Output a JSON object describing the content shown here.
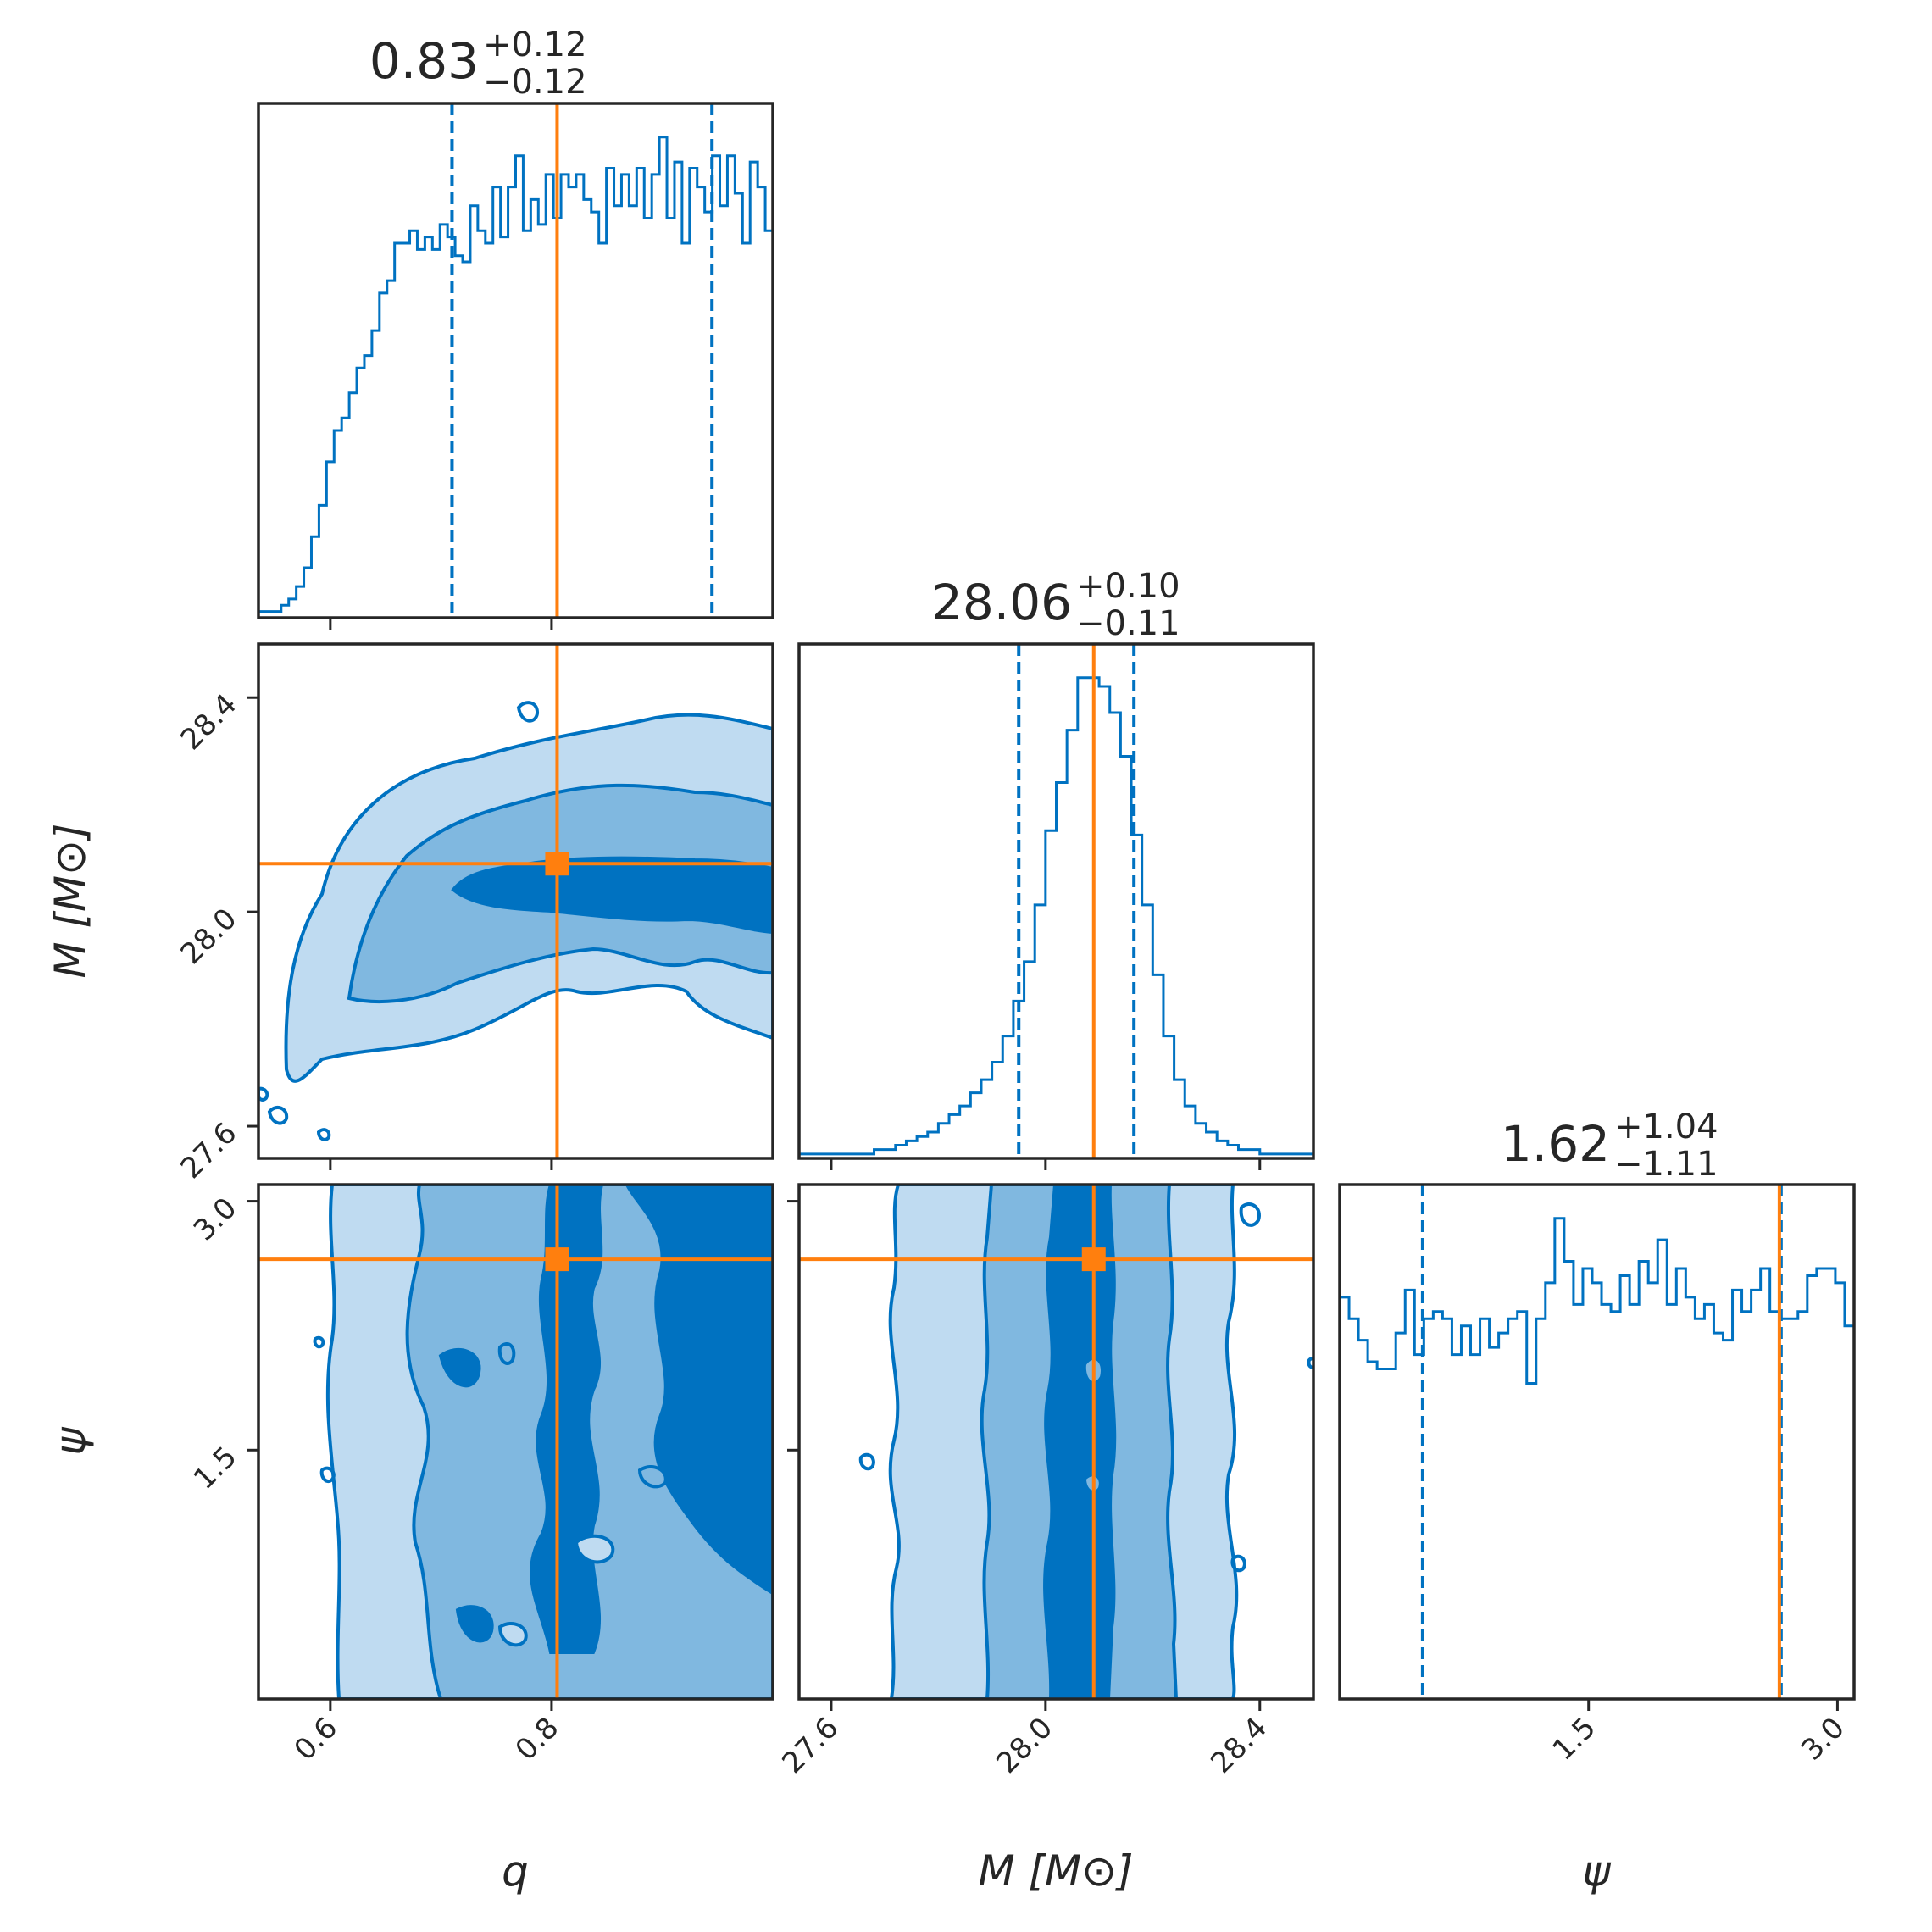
{
  "colors": {
    "primary": "#0072C1",
    "truth": "#FF7F0E",
    "contour_fills": [
      "#BFDBF1",
      "#80B8E0",
      "#0072C1"
    ],
    "axes": "#262626"
  },
  "chart_data": {
    "type": "corner",
    "parameters": [
      {
        "key": "q",
        "label": "q",
        "range": [
          0.535,
          1.0
        ],
        "ticks": [
          0.6,
          0.8
        ],
        "tick_labels": [
          "0.6",
          "0.8"
        ],
        "truth": 0.805,
        "title": {
          "median": "0.83",
          "plus": "+0.12",
          "minus": "−0.12"
        },
        "quantiles": [
          0.71,
          0.945
        ]
      },
      {
        "key": "M",
        "label": "M [M⊙]",
        "range": [
          27.54,
          28.5
        ],
        "ticks": [
          27.6,
          28.0,
          28.4
        ],
        "tick_labels": [
          "27.6",
          "28.0",
          "28.4"
        ],
        "truth": 28.09,
        "title": {
          "median": "28.06",
          "plus": "+0.10",
          "minus": "−0.11"
        },
        "quantiles": [
          27.95,
          28.165
        ]
      },
      {
        "key": "psi",
        "label": "ψ",
        "range": [
          0.0,
          3.1
        ],
        "ticks": [
          1.5,
          3.0
        ],
        "tick_labels": [
          "1.5",
          "3.0"
        ],
        "truth": 2.65,
        "title": {
          "median": "1.62",
          "plus": "+1.04",
          "minus": "−1.11"
        },
        "quantiles": [
          0.5,
          2.66
        ]
      }
    ],
    "histograms": {
      "q": {
        "x_start": 0.535,
        "x_end": 1.0,
        "counts": [
          1,
          1,
          1,
          2,
          3,
          5,
          8,
          13,
          18,
          25,
          30,
          32,
          36,
          40,
          42,
          46,
          52,
          54,
          60,
          60,
          62,
          59,
          61,
          59,
          63,
          61,
          58,
          57,
          66,
          62,
          60,
          69,
          61,
          69,
          74,
          62,
          67,
          63,
          71,
          64,
          71,
          69,
          71,
          67,
          65,
          60,
          72,
          66,
          71,
          66,
          72,
          64,
          71,
          77,
          64,
          73,
          60,
          72,
          69,
          65,
          74,
          66,
          74,
          68,
          60,
          73,
          69,
          62
        ]
      },
      "M": {
        "x_start": 27.54,
        "x_end": 28.5,
        "counts": [
          1,
          1,
          1,
          1,
          1,
          1,
          1,
          2,
          2,
          3,
          4,
          5,
          6,
          8,
          10,
          12,
          15,
          18,
          22,
          28,
          36,
          45,
          58,
          75,
          86,
          98,
          110,
          110,
          108,
          102,
          92,
          74,
          58,
          42,
          28,
          18,
          12,
          8,
          6,
          4,
          3,
          2,
          2,
          1,
          1,
          1,
          1,
          1
        ]
      },
      "psi": {
        "x_start": 0.0,
        "x_end": 3.1,
        "counts": [
          56,
          53,
          50,
          47,
          46,
          46,
          51,
          57,
          48,
          53,
          54,
          53,
          48,
          52,
          48,
          53,
          49,
          51,
          53,
          54,
          44,
          53,
          58,
          67,
          61,
          55,
          60,
          58,
          55,
          54,
          59,
          55,
          61,
          58,
          64,
          55,
          60,
          56,
          53,
          55,
          51,
          50,
          57,
          54,
          57,
          60,
          54,
          53,
          53,
          54,
          59,
          60,
          60,
          58,
          52
        ]
      }
    },
    "scatter_2d": [
      {
        "x": "q",
        "y": "M",
        "truth": [
          0.805,
          28.09
        ]
      },
      {
        "x": "q",
        "y": "psi",
        "truth": [
          0.805,
          2.65
        ]
      },
      {
        "x": "M",
        "y": "psi",
        "truth": [
          28.09,
          2.65
        ]
      }
    ]
  }
}
